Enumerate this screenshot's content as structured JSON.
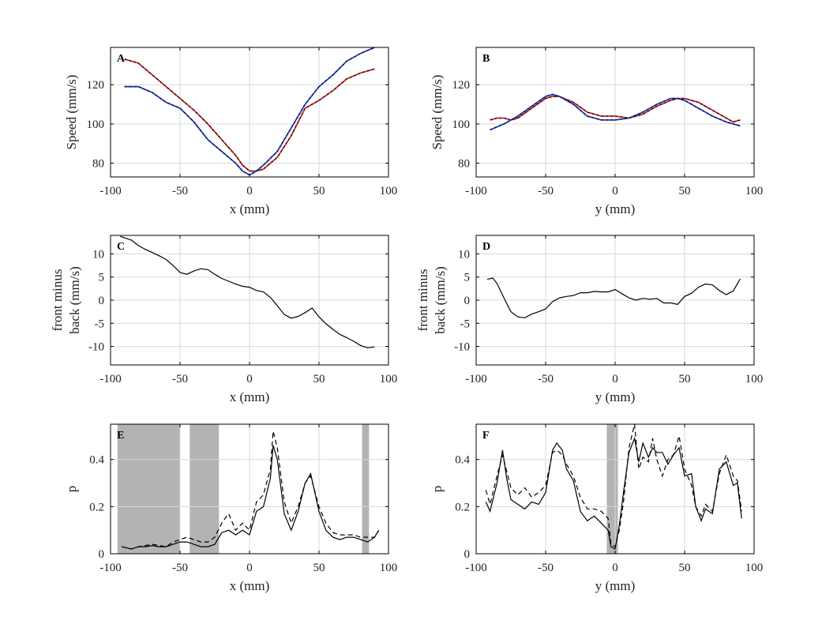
{
  "chart_data": [
    {
      "id": "A",
      "type": "line",
      "panel_label": "A",
      "xlabel": "x (mm)",
      "ylabel": "Speed (mm/s)",
      "xlim": [
        -100,
        100
      ],
      "ylim": [
        73,
        139
      ],
      "xticks": [
        -100,
        -50,
        0,
        50,
        100
      ],
      "yticks": [
        80,
        100,
        120
      ],
      "grid": true,
      "series": [
        {
          "color": "#d62728",
          "style": "solid",
          "x": [
            -90,
            -80,
            -70,
            -60,
            -50,
            -40,
            -30,
            -20,
            -10,
            -5,
            0,
            5,
            10,
            20,
            30,
            40,
            50,
            60,
            70,
            80,
            90
          ],
          "y": [
            133,
            131,
            125,
            119,
            113,
            107,
            100,
            92,
            84,
            79,
            76,
            76,
            77,
            83,
            94,
            108,
            112,
            117,
            123,
            126,
            128
          ]
        },
        {
          "color": "#d62728",
          "style": "dashed",
          "x": [
            -90,
            -80,
            -70,
            -60,
            -50,
            -40,
            -30,
            -20,
            -10,
            -5,
            0,
            5,
            10,
            20,
            30,
            40,
            50,
            60,
            70,
            80,
            90
          ],
          "y": [
            133,
            131,
            125,
            119,
            113,
            107,
            100,
            92,
            84,
            79,
            76,
            76,
            77,
            83,
            94,
            108,
            112,
            117,
            123,
            126,
            128
          ]
        },
        {
          "color": "#1f3fd6",
          "style": "solid",
          "x": [
            -90,
            -80,
            -70,
            -60,
            -50,
            -40,
            -30,
            -20,
            -10,
            -5,
            0,
            5,
            10,
            20,
            30,
            40,
            50,
            60,
            70,
            80,
            90
          ],
          "y": [
            119,
            119,
            116,
            111,
            108,
            101,
            92,
            86,
            80,
            76,
            74,
            76,
            79,
            86,
            98,
            110,
            119,
            125,
            132,
            136,
            139
          ]
        },
        {
          "color": "#1f3fd6",
          "style": "dashed",
          "x": [
            -90,
            -80,
            -70,
            -60,
            -50,
            -40,
            -30,
            -20,
            -10,
            -5,
            0,
            5,
            10,
            20,
            30,
            40,
            50,
            60,
            70,
            80,
            90
          ],
          "y": [
            119,
            119,
            116,
            111,
            108,
            101,
            92,
            86,
            80,
            76,
            74,
            76,
            79,
            86,
            98,
            110,
            119,
            125,
            132,
            136,
            139
          ]
        }
      ]
    },
    {
      "id": "B",
      "type": "line",
      "panel_label": "B",
      "xlabel": "y (mm)",
      "ylabel": "Speed (mm/s)",
      "xlim": [
        -100,
        100
      ],
      "ylim": [
        73,
        139
      ],
      "xticks": [
        -100,
        -50,
        0,
        50,
        100
      ],
      "yticks": [
        80,
        100,
        120
      ],
      "grid": true,
      "series": [
        {
          "color": "#d62728",
          "style": "solid",
          "x": [
            -90,
            -85,
            -80,
            -75,
            -70,
            -60,
            -50,
            -45,
            -40,
            -30,
            -20,
            -10,
            0,
            10,
            20,
            30,
            40,
            45,
            50,
            60,
            70,
            80,
            85,
            90
          ],
          "y": [
            102,
            103,
            103,
            102,
            103,
            108,
            113,
            114,
            114,
            111,
            106,
            104,
            104,
            103,
            105,
            109,
            112,
            113,
            113,
            111,
            107,
            103,
            101,
            102
          ]
        },
        {
          "color": "#d62728",
          "style": "dashed",
          "x": [
            -90,
            -85,
            -80,
            -75,
            -70,
            -60,
            -50,
            -45,
            -40,
            -30,
            -20,
            -10,
            0,
            10,
            20,
            30,
            40,
            45,
            50,
            60,
            70,
            80,
            85,
            90
          ],
          "y": [
            102,
            103,
            103,
            102,
            103,
            108,
            113,
            114,
            114,
            111,
            106,
            104,
            104,
            103,
            105,
            109,
            112,
            113,
            113,
            111,
            107,
            103,
            101,
            102
          ]
        },
        {
          "color": "#1f3fd6",
          "style": "solid",
          "x": [
            -90,
            -80,
            -70,
            -60,
            -50,
            -45,
            -40,
            -30,
            -20,
            -10,
            0,
            10,
            20,
            30,
            40,
            45,
            50,
            60,
            70,
            80,
            90
          ],
          "y": [
            97,
            100,
            104,
            109,
            114,
            115,
            114,
            110,
            104,
            102,
            102,
            103,
            106,
            110,
            113,
            113,
            112,
            108,
            104,
            101,
            99
          ]
        },
        {
          "color": "#1f3fd6",
          "style": "dashed",
          "x": [
            -90,
            -80,
            -70,
            -60,
            -50,
            -45,
            -40,
            -30,
            -20,
            -10,
            0,
            10,
            20,
            30,
            40,
            45,
            50,
            60,
            70,
            80,
            90
          ],
          "y": [
            97,
            100,
            104,
            109,
            114,
            115,
            114,
            110,
            104,
            102,
            102,
            103,
            106,
            110,
            113,
            113,
            112,
            108,
            104,
            101,
            99
          ]
        }
      ]
    },
    {
      "id": "C",
      "type": "line",
      "panel_label": "C",
      "xlabel": "x (mm)",
      "ylabel": "front minus back (mm/s)",
      "xlim": [
        -100,
        100
      ],
      "ylim": [
        -14,
        14
      ],
      "xticks": [
        -100,
        -50,
        0,
        50,
        100
      ],
      "yticks": [
        -10,
        -5,
        0,
        5,
        10
      ],
      "grid": true,
      "series": [
        {
          "color": "#000000",
          "style": "solid",
          "x": [
            -93,
            -85,
            -80,
            -75,
            -70,
            -65,
            -60,
            -55,
            -50,
            -45,
            -40,
            -35,
            -30,
            -25,
            -20,
            -15,
            -10,
            -5,
            0,
            5,
            10,
            15,
            20,
            25,
            30,
            35,
            40,
            45,
            50,
            55,
            60,
            65,
            70,
            75,
            80,
            85,
            90
          ],
          "y": [
            13.8,
            13,
            11.8,
            11,
            10.3,
            9.6,
            8.8,
            7.5,
            6,
            5.6,
            6.3,
            6.8,
            6.6,
            5.6,
            4.7,
            4.1,
            3.5,
            3.0,
            2.8,
            2.1,
            1.8,
            0.6,
            -1.2,
            -3.1,
            -3.9,
            -3.5,
            -2.7,
            -1.7,
            -3.6,
            -5.1,
            -6.3,
            -7.4,
            -8.1,
            -8.9,
            -9.8,
            -10.3,
            -10.1
          ]
        }
      ]
    },
    {
      "id": "D",
      "type": "line",
      "panel_label": "D",
      "xlabel": "y (mm)",
      "ylabel": "front minus back (mm/s)",
      "xlim": [
        -100,
        100
      ],
      "ylim": [
        -14,
        14
      ],
      "xticks": [
        -100,
        -50,
        0,
        50,
        100
      ],
      "yticks": [
        -10,
        -5,
        0,
        5,
        10
      ],
      "grid": true,
      "series": [
        {
          "color": "#000000",
          "style": "solid",
          "x": [
            -92,
            -88,
            -85,
            -80,
            -75,
            -70,
            -65,
            -60,
            -55,
            -50,
            -45,
            -40,
            -35,
            -30,
            -25,
            -20,
            -15,
            -10,
            -5,
            0,
            5,
            10,
            15,
            20,
            25,
            30,
            35,
            40,
            45,
            50,
            55,
            60,
            65,
            70,
            75,
            80,
            85,
            90
          ],
          "y": [
            4.5,
            4.8,
            3.6,
            0.5,
            -2.5,
            -3.6,
            -3.8,
            -3,
            -2.5,
            -1.9,
            -0.3,
            0.5,
            0.8,
            1.0,
            1.6,
            1.6,
            1.9,
            1.8,
            1.8,
            2.3,
            1.4,
            0.5,
            0,
            0.4,
            0.2,
            0.4,
            -0.6,
            -0.6,
            -0.9,
            0.8,
            1.5,
            2.8,
            3.5,
            3.3,
            2.1,
            1.2,
            2,
            4.6
          ]
        }
      ]
    },
    {
      "id": "E",
      "type": "line",
      "panel_label": "E",
      "xlabel": "x (mm)",
      "ylabel": "p",
      "xlim": [
        -100,
        100
      ],
      "ylim": [
        0,
        0.55
      ],
      "xticks": [
        -100,
        -50,
        0,
        50,
        100
      ],
      "yticks": [
        0,
        0.2,
        0.4
      ],
      "grid": true,
      "shaded_regions": [
        [
          -95,
          -50
        ],
        [
          -43,
          -22
        ],
        [
          81,
          86
        ]
      ],
      "series": [
        {
          "color": "#000000",
          "style": "solid",
          "x": [
            -92,
            -85,
            -80,
            -75,
            -70,
            -65,
            -60,
            -55,
            -50,
            -45,
            -40,
            -35,
            -30,
            -25,
            -20,
            -15,
            -10,
            -5,
            0,
            5,
            10,
            15,
            17,
            20,
            25,
            30,
            35,
            40,
            44,
            50,
            55,
            60,
            65,
            70,
            75,
            80,
            85,
            90,
            93
          ],
          "y": [
            0.03,
            0.02,
            0.03,
            0.03,
            0.035,
            0.03,
            0.03,
            0.04,
            0.05,
            0.05,
            0.04,
            0.03,
            0.03,
            0.04,
            0.09,
            0.1,
            0.08,
            0.1,
            0.08,
            0.18,
            0.2,
            0.32,
            0.46,
            0.4,
            0.17,
            0.1,
            0.18,
            0.3,
            0.34,
            0.18,
            0.1,
            0.07,
            0.06,
            0.07,
            0.07,
            0.06,
            0.05,
            0.07,
            0.1
          ]
        },
        {
          "color": "#000000",
          "style": "dashed",
          "x": [
            -92,
            -85,
            -80,
            -75,
            -70,
            -65,
            -60,
            -55,
            -50,
            -45,
            -40,
            -35,
            -30,
            -25,
            -20,
            -15,
            -10,
            -5,
            0,
            5,
            10,
            15,
            17,
            20,
            25,
            30,
            35,
            40,
            44,
            50,
            55,
            60,
            65,
            70,
            75,
            80,
            85,
            90,
            93
          ],
          "y": [
            0.03,
            0.02,
            0.03,
            0.035,
            0.04,
            0.035,
            0.03,
            0.05,
            0.06,
            0.07,
            0.06,
            0.05,
            0.05,
            0.07,
            0.13,
            0.17,
            0.1,
            0.13,
            0.1,
            0.22,
            0.25,
            0.36,
            0.52,
            0.45,
            0.22,
            0.13,
            0.2,
            0.3,
            0.33,
            0.2,
            0.13,
            0.09,
            0.08,
            0.08,
            0.08,
            0.07,
            0.07,
            0.07,
            0.1
          ]
        }
      ]
    },
    {
      "id": "F",
      "type": "line",
      "panel_label": "F",
      "xlabel": "y (mm)",
      "ylabel": "p",
      "xlim": [
        -100,
        100
      ],
      "ylim": [
        0,
        0.55
      ],
      "xticks": [
        -100,
        -50,
        0,
        50,
        100
      ],
      "yticks": [
        0,
        0.2,
        0.4
      ],
      "grid": true,
      "shaded_regions": [
        [
          -6,
          2
        ]
      ],
      "series": [
        {
          "color": "#000000",
          "style": "solid",
          "x": [
            -93,
            -90,
            -85,
            -81,
            -78,
            -75,
            -70,
            -65,
            -60,
            -55,
            -50,
            -45,
            -42,
            -38,
            -35,
            -30,
            -25,
            -20,
            -15,
            -10,
            -5,
            -3,
            0,
            3,
            6,
            10,
            14,
            17,
            20,
            24,
            27,
            30,
            34,
            38,
            42,
            46,
            50,
            55,
            58,
            62,
            65,
            70,
            75,
            80,
            85,
            88,
            91
          ],
          "y": [
            0.22,
            0.18,
            0.3,
            0.44,
            0.32,
            0.23,
            0.21,
            0.19,
            0.22,
            0.21,
            0.26,
            0.44,
            0.47,
            0.44,
            0.36,
            0.31,
            0.18,
            0.14,
            0.16,
            0.13,
            0.1,
            0.03,
            0.02,
            0.12,
            0.26,
            0.43,
            0.49,
            0.39,
            0.47,
            0.41,
            0.45,
            0.43,
            0.43,
            0.38,
            0.42,
            0.45,
            0.33,
            0.34,
            0.2,
            0.14,
            0.19,
            0.17,
            0.36,
            0.39,
            0.29,
            0.3,
            0.15
          ]
        },
        {
          "color": "#000000",
          "style": "dashed",
          "x": [
            -93,
            -90,
            -85,
            -81,
            -78,
            -75,
            -70,
            -65,
            -60,
            -55,
            -50,
            -45,
            -42,
            -38,
            -35,
            -30,
            -25,
            -20,
            -15,
            -10,
            -5,
            -3,
            0,
            3,
            6,
            10,
            14,
            17,
            20,
            24,
            27,
            30,
            34,
            38,
            42,
            46,
            50,
            55,
            58,
            62,
            65,
            70,
            75,
            80,
            85,
            88,
            91
          ],
          "y": [
            0.27,
            0.21,
            0.33,
            0.42,
            0.35,
            0.28,
            0.25,
            0.28,
            0.24,
            0.26,
            0.29,
            0.43,
            0.44,
            0.42,
            0.38,
            0.33,
            0.24,
            0.19,
            0.19,
            0.18,
            0.15,
            0.04,
            0.03,
            0.1,
            0.22,
            0.45,
            0.55,
            0.36,
            0.41,
            0.39,
            0.49,
            0.4,
            0.33,
            0.4,
            0.42,
            0.5,
            0.36,
            0.29,
            0.2,
            0.16,
            0.21,
            0.18,
            0.34,
            0.42,
            0.33,
            0.31,
            0.18
          ]
        }
      ]
    }
  ]
}
